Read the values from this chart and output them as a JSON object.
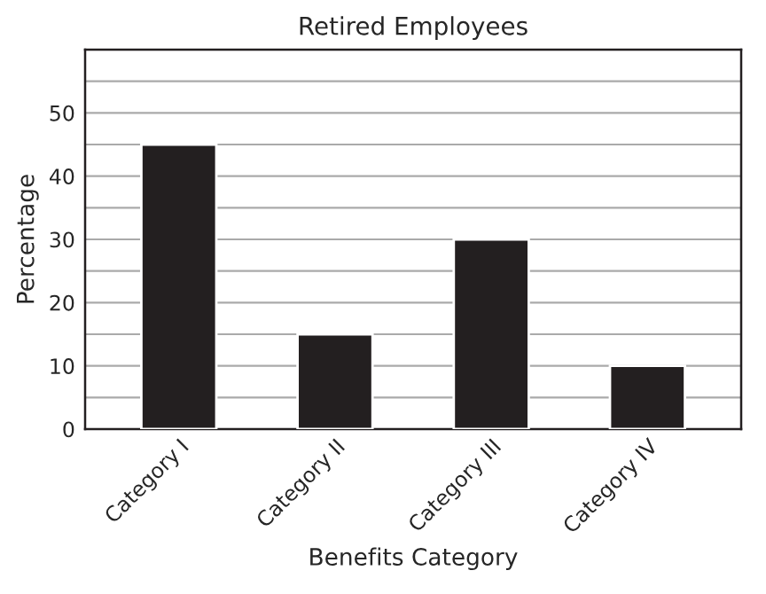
{
  "chart_data": {
    "type": "bar",
    "title": "Retired Employees",
    "xlabel": "Benefits Category",
    "ylabel": "Percentage",
    "categories": [
      "Category I",
      "Category II",
      "Category III",
      "Category IV"
    ],
    "values": [
      45,
      15,
      30,
      10
    ],
    "color": "#231f20",
    "ylim": [
      0,
      60
    ],
    "yticks": [
      0,
      {
        "value": 5,
        "label": null
      },
      10,
      {
        "value": 15,
        "label": null
      },
      20,
      {
        "value": 25,
        "label": null
      },
      30,
      {
        "value": 35,
        "label": null
      },
      40,
      {
        "value": 45,
        "label": null
      },
      50,
      {
        "value": 55,
        "label": null
      },
      {
        "value": 60,
        "label": null
      }
    ],
    "grid": "y"
  }
}
